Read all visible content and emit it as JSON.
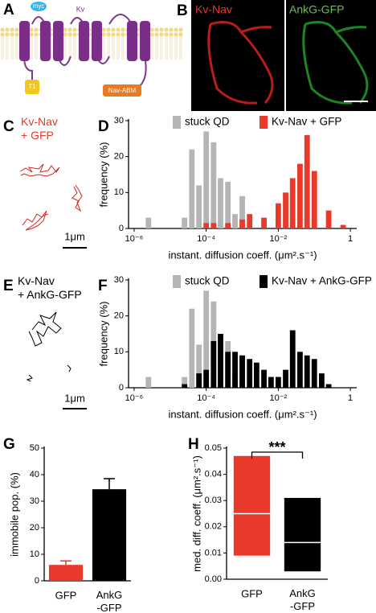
{
  "panels": {
    "A": {
      "letter": "A",
      "labels": [
        "myc",
        "Kv",
        "T1",
        "Nav-ABM"
      ]
    },
    "B": {
      "letter": "B",
      "labels": [
        "Kv-Nav",
        "AnkG-GFP"
      ]
    },
    "C": {
      "letter": "C",
      "label": "Kv-Nav\n+ GFP",
      "scale": "1μm"
    },
    "E": {
      "letter": "E",
      "label": "Kv-Nav\n+ AnkG-GFP",
      "scale": "1μm"
    }
  },
  "chart_data": [
    {
      "letter": "D",
      "type": "bar",
      "xscale": "log",
      "xlabel": "instant. diffusion coeff. (μm².s⁻¹)",
      "ylabel": "frequency (%)",
      "x": [
        2.5e-06,
        4e-06,
        6.3e-06,
        1e-05,
        1.6e-05,
        2.5e-05,
        4e-05,
        6.3e-05,
        0.0001,
        0.00016,
        0.00025,
        0.0004,
        0.00063,
        0.001,
        0.0016,
        0.0025,
        0.004,
        0.0063,
        0.01,
        0.016,
        0.025,
        0.04,
        0.063,
        0.1,
        0.16,
        0.25,
        0.4,
        0.63
      ],
      "series": [
        {
          "name": "stuck QD",
          "color": "#b5b5b5",
          "values": [
            3,
            null,
            null,
            null,
            null,
            3,
            22,
            12,
            27,
            24,
            14,
            13,
            4,
            9,
            null,
            null,
            null,
            null,
            null,
            null,
            null,
            null,
            null,
            null,
            null,
            null,
            null,
            null
          ]
        },
        {
          "name": "Kv-Nav + GFP",
          "color": "#e8392a",
          "values": [
            null,
            null,
            null,
            null,
            null,
            null,
            null,
            null,
            1.5,
            1.5,
            null,
            1.5,
            null,
            2.5,
            4,
            null,
            3,
            null,
            7,
            10,
            14,
            18,
            26,
            16,
            null,
            5,
            null,
            1
          ]
        }
      ],
      "xlim": [
        7e-07,
        1.5
      ],
      "ylim": [
        0,
        30
      ],
      "xticks": [
        {
          "value": 1e-06,
          "label": "10⁻⁶"
        },
        {
          "value": 0.0001,
          "label": "10⁻⁴"
        },
        {
          "value": 0.01,
          "label": "10⁻²"
        },
        1
      ],
      "yticks": [
        0,
        10,
        20,
        30
      ],
      "legend": "top"
    },
    {
      "letter": "F",
      "type": "bar",
      "xscale": "log",
      "xlabel": "instant. diffusion coeff. (μm².s⁻¹)",
      "ylabel": "frequency (%)",
      "x": [
        2.5e-06,
        4e-06,
        6.3e-06,
        1e-05,
        1.6e-05,
        2.5e-05,
        4e-05,
        6.3e-05,
        0.0001,
        0.00016,
        0.00025,
        0.0004,
        0.00063,
        0.001,
        0.0016,
        0.0025,
        0.004,
        0.0063,
        0.01,
        0.016,
        0.025,
        0.04,
        0.063,
        0.1,
        0.16,
        0.25,
        0.4,
        0.63
      ],
      "series": [
        {
          "name": "stuck QD",
          "color": "#b5b5b5",
          "values": [
            3,
            null,
            null,
            null,
            null,
            3,
            22,
            12,
            27,
            24,
            14,
            13,
            4,
            9,
            null,
            null,
            null,
            null,
            null,
            null,
            null,
            null,
            null,
            null,
            null,
            null,
            null,
            null
          ]
        },
        {
          "name": "Kv-Nav + AnkG-GFP",
          "color": "#000000",
          "values": [
            null,
            null,
            null,
            null,
            null,
            1,
            null,
            4,
            5,
            13,
            15,
            10,
            10,
            9,
            8,
            7,
            5,
            3,
            3,
            5,
            16,
            10,
            9,
            8,
            4,
            1,
            null,
            null
          ]
        }
      ],
      "xlim": [
        7e-07,
        1.5
      ],
      "ylim": [
        0,
        30
      ],
      "xticks": [
        {
          "value": 1e-06,
          "label": "10⁻⁶"
        },
        {
          "value": 0.0001,
          "label": "10⁻⁴"
        },
        {
          "value": 0.01,
          "label": "10⁻²"
        },
        1
      ],
      "yticks": [
        0,
        10,
        20,
        30
      ],
      "legend": "top"
    },
    {
      "letter": "G",
      "type": "errorbar",
      "ylabel": "immobile pop. (%)",
      "categories": [
        "GFP",
        "AnkG\n-GFP"
      ],
      "values": [
        6,
        34.5
      ],
      "errors": [
        1.5,
        4
      ],
      "colors": [
        "#e8392a",
        "#000000"
      ],
      "ylim": [
        0,
        50
      ],
      "yticks": [
        0,
        10,
        20,
        30,
        40,
        50
      ]
    },
    {
      "letter": "H",
      "type": "box",
      "ylabel": "med. diff. coeff. (μm².s⁻¹)",
      "categories": [
        "GFP",
        "AnkG\n-GFP"
      ],
      "low": [
        0.009,
        0.003
      ],
      "median": [
        0.025,
        0.014
      ],
      "high": [
        0.047,
        0.031
      ],
      "colors": [
        "#e8392a",
        "#000000"
      ],
      "annotation": "***",
      "ylim": [
        0,
        0.05
      ],
      "yticks": [
        {
          "value": 0,
          "label": "0.00"
        },
        0.01,
        0.02,
        0.03,
        0.04,
        0.05
      ]
    }
  ]
}
